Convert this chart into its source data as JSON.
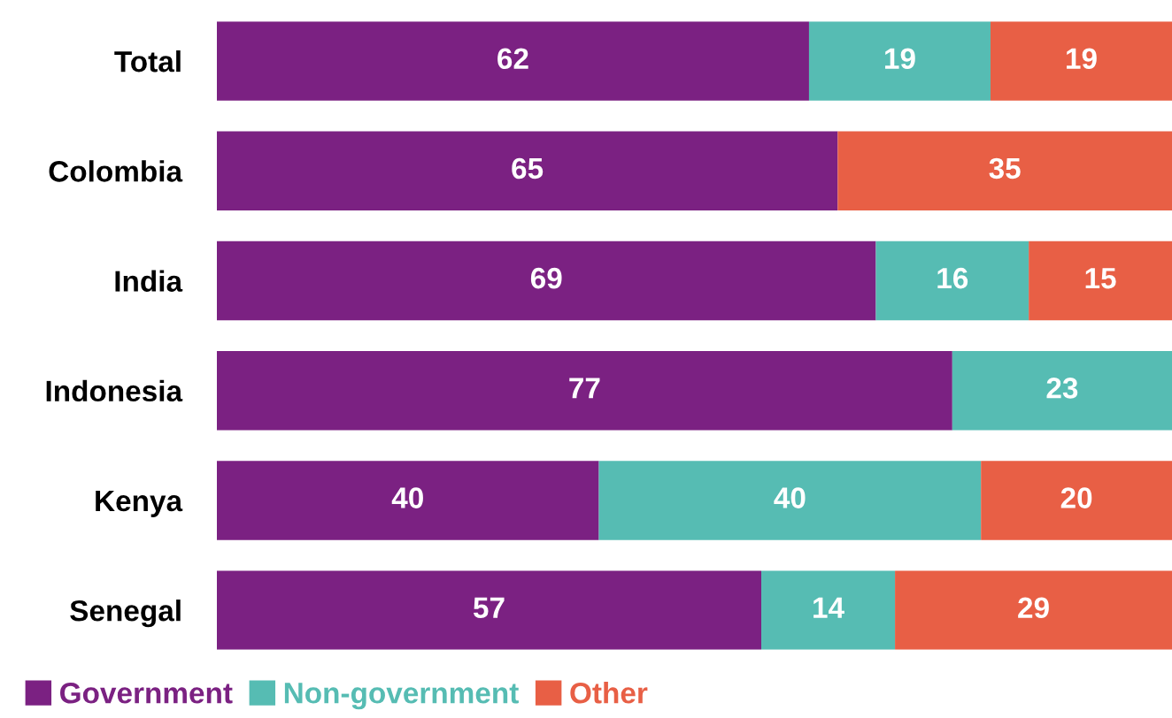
{
  "chart_data": {
    "type": "bar",
    "orientation": "horizontal",
    "stacked": true,
    "data_labels": true,
    "grid": false,
    "legend": "bottom left",
    "categories": [
      "Total",
      "Colombia",
      "India",
      "Indonesia",
      "Kenya",
      "Senegal"
    ],
    "series": [
      {
        "name": "Government",
        "color": "#7b2182",
        "values": [
          62,
          65,
          69,
          77,
          40,
          57
        ]
      },
      {
        "name": "Non-government",
        "color": "#56bcb3",
        "values": [
          19,
          null,
          16,
          23,
          40,
          14
        ]
      },
      {
        "name": "Other",
        "color": "#e85f45",
        "values": [
          19,
          35,
          15,
          null,
          20,
          29
        ]
      }
    ]
  }
}
